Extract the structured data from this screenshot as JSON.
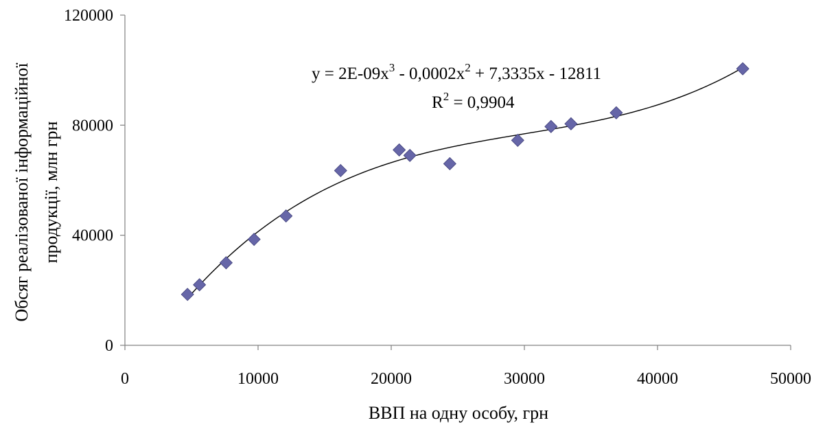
{
  "chart_data": {
    "type": "scatter",
    "xlabel": "ВВП на одну особу, грн",
    "ylabel_lines": [
      "Обсяг реалізованої інформаційної",
      "продукції, млн грн"
    ],
    "xlim": [
      0,
      50000
    ],
    "ylim": [
      0,
      120000
    ],
    "x_ticks": [
      0,
      10000,
      20000,
      30000,
      40000,
      50000
    ],
    "y_ticks": [
      0,
      40000,
      80000,
      120000
    ],
    "x_tick_labels": [
      "0",
      "10000",
      "20000",
      "30000",
      "40000",
      "50000"
    ],
    "y_tick_labels": [
      "0",
      "40000",
      "80000",
      "120000"
    ],
    "grid": false,
    "marker": "diamond",
    "marker_color": "#6666a8",
    "series": [
      {
        "points": [
          {
            "x": 4700,
            "y": 18500
          },
          {
            "x": 5600,
            "y": 22000
          },
          {
            "x": 7600,
            "y": 30000
          },
          {
            "x": 9700,
            "y": 38500
          },
          {
            "x": 12100,
            "y": 47000
          },
          {
            "x": 16200,
            "y": 63500
          },
          {
            "x": 20600,
            "y": 71000
          },
          {
            "x": 21400,
            "y": 69000
          },
          {
            "x": 24400,
            "y": 66000
          },
          {
            "x": 29500,
            "y": 74500
          },
          {
            "x": 32000,
            "y": 79500
          },
          {
            "x": 33500,
            "y": 80500
          },
          {
            "x": 36900,
            "y": 84500
          },
          {
            "x": 46400,
            "y": 100500
          }
        ]
      }
    ],
    "trendline": {
      "type": "polynomial",
      "order": 3,
      "equation": {
        "prefix": "y = 2E-09x",
        "exp1": "3",
        "mid": " - 0,0002x",
        "exp2": "2",
        "suffix": " + 7,3335x - 12811"
      },
      "r2": {
        "prefix": "R",
        "exp": "2",
        "suffix": " = 0,9904"
      },
      "color": "#000000"
    }
  }
}
